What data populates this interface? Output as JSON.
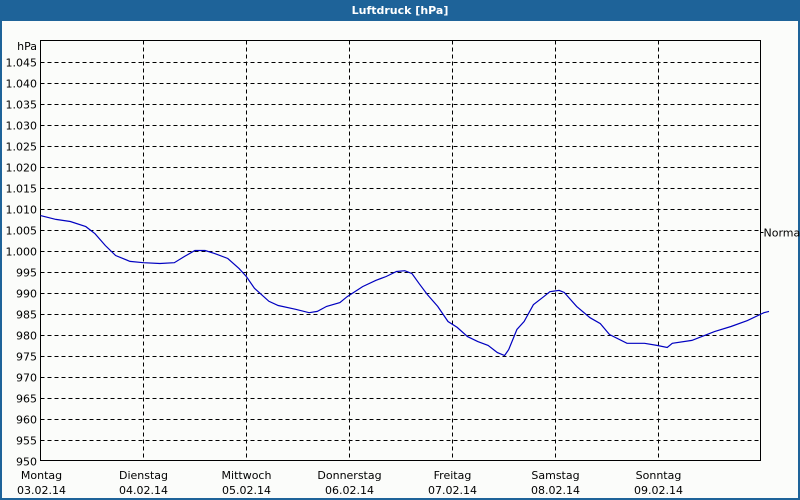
{
  "window": {
    "title": "Luftdruck [hPa]"
  },
  "colors": {
    "titlebar": "#1e6399",
    "line": "#0000c0",
    "background": "#fbfcfa",
    "grid": "#000000"
  },
  "chart_data": {
    "type": "line",
    "title": "Luftdruck [hPa]",
    "ylabel": "hPa",
    "xlabel": "",
    "ylim": [
      950,
      1045
    ],
    "yticks": [
      950,
      955,
      960,
      965,
      970,
      975,
      980,
      985,
      990,
      995,
      1000,
      1005,
      1010,
      1015,
      1020,
      1025,
      1030,
      1035,
      1040,
      1045
    ],
    "ytick_labels": [
      "950",
      "955",
      "960",
      "965",
      "970",
      "975",
      "980",
      "985",
      "990",
      "995",
      "1.000",
      "1.005",
      "1.010",
      "1.015",
      "1.020",
      "1.025",
      "1.030",
      "1.035",
      "1.040",
      "1.045"
    ],
    "grid": true,
    "categories": [
      {
        "day": "Montag",
        "date": "03.02.14"
      },
      {
        "day": "Dienstag",
        "date": "04.02.14"
      },
      {
        "day": "Mittwoch",
        "date": "05.02.14"
      },
      {
        "day": "Donnerstag",
        "date": "06.02.14"
      },
      {
        "day": "Freitag",
        "date": "07.02.14"
      },
      {
        "day": "Samstag",
        "date": "08.02.14"
      },
      {
        "day": "Sonntag",
        "date": "09.02.14"
      }
    ],
    "reference_line": {
      "label": "Normal",
      "value": 1004.5
    },
    "series": [
      {
        "name": "Luftdruck",
        "x_days": [
          0.0,
          0.15,
          0.29,
          0.44,
          0.53,
          0.63,
          0.73,
          0.87,
          1.0,
          1.16,
          1.3,
          1.4,
          1.5,
          1.6,
          1.69,
          1.82,
          1.93,
          2.0,
          2.08,
          2.22,
          2.31,
          2.48,
          2.61,
          2.69,
          2.78,
          2.91,
          2.98,
          3.13,
          3.26,
          3.36,
          3.46,
          3.54,
          3.61,
          3.68,
          3.76,
          3.86,
          3.96,
          4.05,
          4.15,
          4.25,
          4.35,
          4.44,
          4.51,
          4.55,
          4.63,
          4.7,
          4.79,
          4.89,
          4.95,
          5.04,
          5.09,
          5.21,
          5.34,
          5.44,
          5.53,
          5.7,
          5.87,
          5.99,
          6.09,
          6.14,
          6.33,
          6.55,
          6.71,
          6.87,
          7.03,
          7.08
        ],
        "values": [
          1008.3,
          1007.4,
          1006.9,
          1005.7,
          1004.0,
          1001.2,
          998.8,
          997.4,
          997.1,
          996.9,
          997.1,
          998.6,
          1000.0,
          1000.0,
          999.3,
          998.1,
          995.7,
          993.8,
          991.0,
          987.9,
          986.9,
          986.0,
          985.2,
          985.5,
          986.7,
          987.6,
          989.0,
          991.4,
          992.9,
          993.8,
          995.0,
          995.2,
          994.5,
          992.1,
          989.5,
          986.7,
          983.1,
          981.7,
          979.5,
          978.3,
          977.4,
          975.7,
          975.0,
          976.4,
          981.2,
          983.1,
          987.1,
          989.0,
          990.2,
          990.5,
          990.0,
          986.7,
          984.0,
          982.6,
          980.0,
          977.9,
          977.9,
          977.4,
          976.9,
          977.9,
          978.6,
          980.7,
          981.9,
          983.3,
          985.2,
          985.5
        ]
      }
    ]
  }
}
